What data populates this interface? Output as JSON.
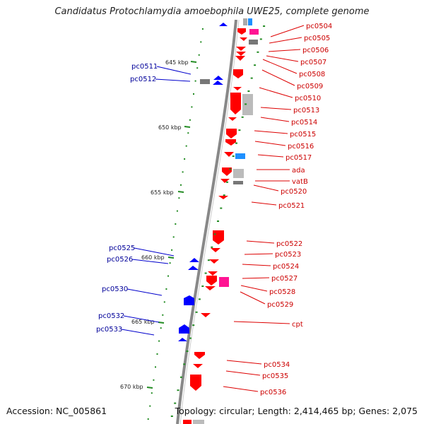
{
  "title": "Candidatus Protochlamydia amoebophila UWE25, complete genome",
  "accession": "Accession: NC_005861",
  "summary": "Topology: circular; Length: 2,414,465 bp; Genes: 2,075",
  "colors": {
    "forward_gene": "#ff0000",
    "reverse_gene": "#0000ff",
    "pseudo_gene": "#888888",
    "rna_gene": "#ff1493",
    "other_gene": "#1e90ff",
    "tick": "#228b22",
    "backbone": "#888888",
    "label_forward": "#cc0000",
    "label_reverse": "#000099"
  },
  "scale_labels": [
    "645 kbp",
    "650 kbp",
    "655 kbp",
    "660 kbp",
    "665 kbp",
    "670 kbp"
  ],
  "right_labels": [
    "pc0504",
    "pc0505",
    "pc0506",
    "pc0507",
    "pc0508",
    "pc0509",
    "pc0510",
    "pc0513",
    "pc0514",
    "pc0515",
    "pc0516",
    "pc0517",
    "ada",
    "vatB",
    "pc0520",
    "pc0521",
    "pc0522",
    "pc0523",
    "pc0524",
    "pc0527",
    "pc0528",
    "pc0529",
    "cpt",
    "pc0534",
    "pc0535",
    "pc0536"
  ],
  "left_labels": [
    "pc0511",
    "pc0512",
    "pc0525",
    "pc0526",
    "pc0530",
    "pc0532",
    "pc0533"
  ]
}
